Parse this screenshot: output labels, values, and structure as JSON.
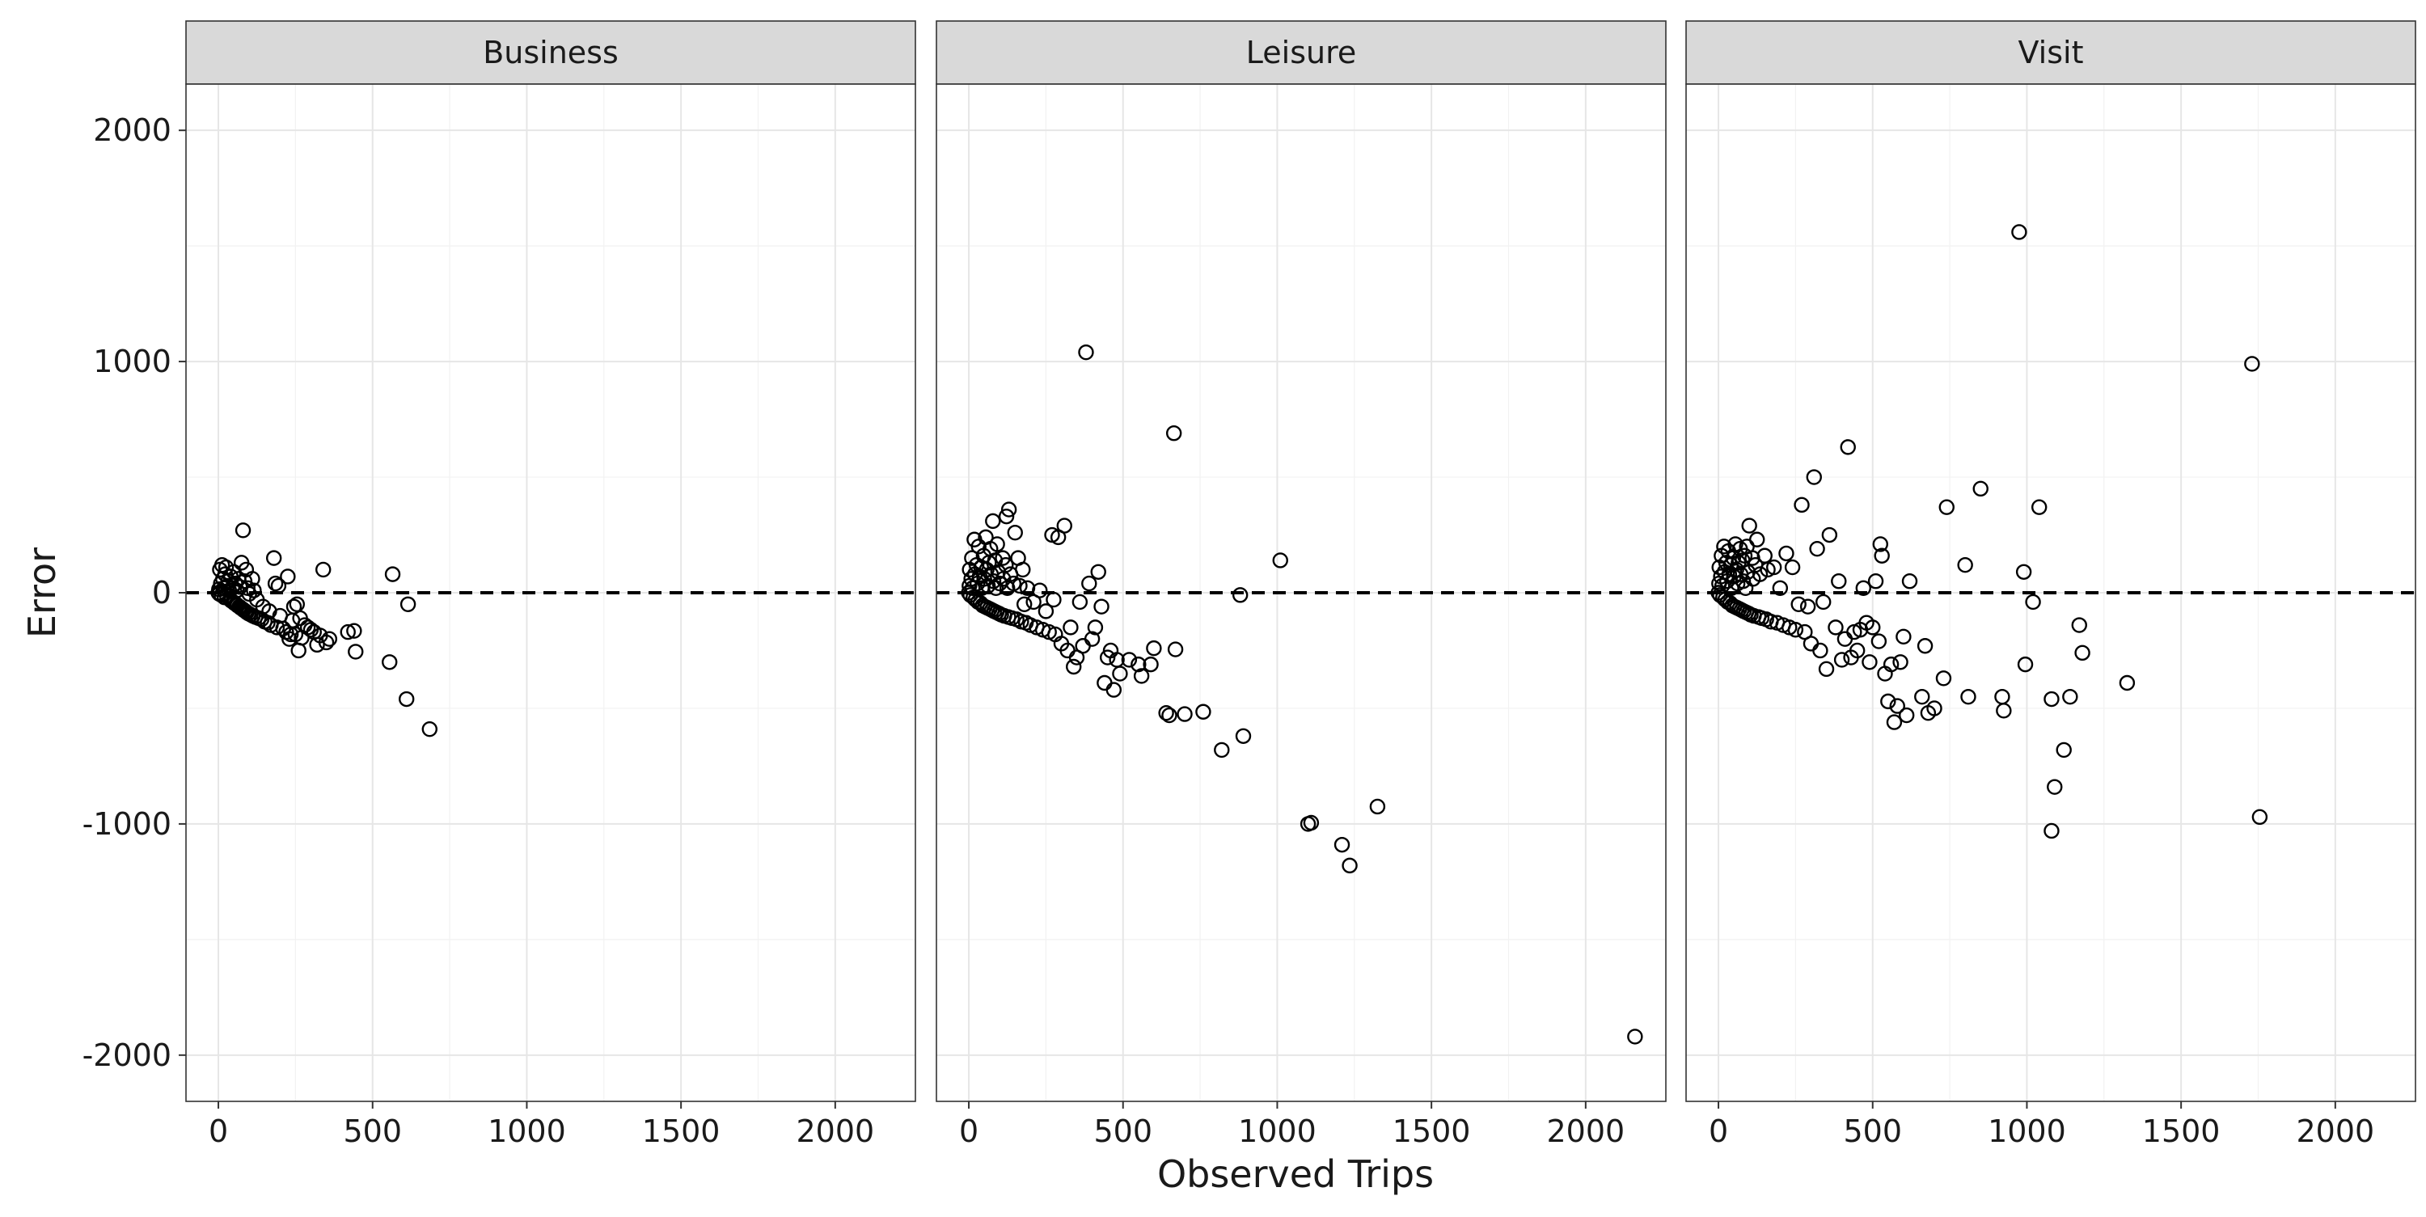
{
  "chart_data": {
    "type": "scatter",
    "xlabel": "Observed Trips",
    "ylabel": "Error",
    "xlim": [
      -105,
      2260
    ],
    "ylim": [
      -2200,
      2200
    ],
    "x_ticks": [
      0,
      500,
      1000,
      1500,
      2000
    ],
    "y_ticks": [
      -2000,
      -1000,
      0,
      1000,
      2000
    ],
    "x_tick_labels": [
      "0",
      "500",
      "1000",
      "1500",
      "2000"
    ],
    "y_tick_labels": [
      "-2000",
      "-1000",
      "0",
      "1000",
      "2000"
    ],
    "reference_line": {
      "y": 0,
      "style": "dashed"
    },
    "grid": true,
    "facets": [
      {
        "label": "Business",
        "points": [
          [
            0,
            0
          ],
          [
            2,
            15
          ],
          [
            3,
            -5
          ],
          [
            5,
            100
          ],
          [
            8,
            40
          ],
          [
            10,
            -10
          ],
          [
            12,
            120
          ],
          [
            15,
            60
          ],
          [
            18,
            20
          ],
          [
            20,
            -20
          ],
          [
            22,
            80
          ],
          [
            25,
            110
          ],
          [
            28,
            -15
          ],
          [
            30,
            30
          ],
          [
            32,
            50
          ],
          [
            35,
            10
          ],
          [
            38,
            -30
          ],
          [
            40,
            70
          ],
          [
            42,
            -35
          ],
          [
            45,
            20
          ],
          [
            48,
            -40
          ],
          [
            50,
            90
          ],
          [
            52,
            -45
          ],
          [
            55,
            40
          ],
          [
            58,
            -50
          ],
          [
            60,
            10
          ],
          [
            62,
            -55
          ],
          [
            65,
            60
          ],
          [
            68,
            -60
          ],
          [
            70,
            25
          ],
          [
            72,
            -65
          ],
          [
            75,
            130
          ],
          [
            78,
            -70
          ],
          [
            80,
            270
          ],
          [
            82,
            -75
          ],
          [
            85,
            50
          ],
          [
            88,
            -80
          ],
          [
            90,
            100
          ],
          [
            92,
            -85
          ],
          [
            95,
            20
          ],
          [
            98,
            -90
          ],
          [
            100,
            -5
          ],
          [
            105,
            -95
          ],
          [
            110,
            60
          ],
          [
            112,
            -100
          ],
          [
            115,
            10
          ],
          [
            120,
            -105
          ],
          [
            125,
            -30
          ],
          [
            130,
            -110
          ],
          [
            140,
            -115
          ],
          [
            145,
            -60
          ],
          [
            150,
            -125
          ],
          [
            160,
            -130
          ],
          [
            165,
            -80
          ],
          [
            170,
            -140
          ],
          [
            180,
            150
          ],
          [
            185,
            40
          ],
          [
            190,
            -150
          ],
          [
            195,
            30
          ],
          [
            200,
            -100
          ],
          [
            210,
            -155
          ],
          [
            220,
            -170
          ],
          [
            225,
            70
          ],
          [
            230,
            -200
          ],
          [
            235,
            -180
          ],
          [
            240,
            -120
          ],
          [
            245,
            -60
          ],
          [
            250,
            -180
          ],
          [
            255,
            -50
          ],
          [
            260,
            -250
          ],
          [
            265,
            -110
          ],
          [
            270,
            -195
          ],
          [
            280,
            -140
          ],
          [
            290,
            -150
          ],
          [
            300,
            -160
          ],
          [
            310,
            -170
          ],
          [
            320,
            -225
          ],
          [
            330,
            -185
          ],
          [
            340,
            100
          ],
          [
            350,
            -215
          ],
          [
            360,
            -200
          ],
          [
            420,
            -170
          ],
          [
            440,
            -165
          ],
          [
            445,
            -255
          ],
          [
            555,
            -300
          ],
          [
            565,
            80
          ],
          [
            610,
            -460
          ],
          [
            615,
            -50
          ],
          [
            685,
            -590
          ]
        ]
      },
      {
        "label": "Leisure",
        "points": [
          [
            0,
            0
          ],
          [
            2,
            30
          ],
          [
            3,
            100
          ],
          [
            5,
            -10
          ],
          [
            8,
            60
          ],
          [
            10,
            150
          ],
          [
            12,
            20
          ],
          [
            15,
            -20
          ],
          [
            18,
            230
          ],
          [
            20,
            80
          ],
          [
            22,
            -30
          ],
          [
            25,
            120
          ],
          [
            28,
            40
          ],
          [
            30,
            -40
          ],
          [
            32,
            200
          ],
          [
            35,
            70
          ],
          [
            38,
            -45
          ],
          [
            40,
            110
          ],
          [
            42,
            20
          ],
          [
            45,
            -55
          ],
          [
            48,
            160
          ],
          [
            50,
            60
          ],
          [
            52,
            -60
          ],
          [
            55,
            240
          ],
          [
            58,
            100
          ],
          [
            60,
            -65
          ],
          [
            62,
            30
          ],
          [
            65,
            130
          ],
          [
            68,
            -70
          ],
          [
            70,
            190
          ],
          [
            72,
            80
          ],
          [
            75,
            -75
          ],
          [
            78,
            310
          ],
          [
            80,
            50
          ],
          [
            82,
            -80
          ],
          [
            85,
            140
          ],
          [
            88,
            20
          ],
          [
            90,
            -85
          ],
          [
            92,
            210
          ],
          [
            95,
            90
          ],
          [
            98,
            -90
          ],
          [
            100,
            40
          ],
          [
            105,
            -95
          ],
          [
            110,
            150
          ],
          [
            112,
            60
          ],
          [
            115,
            -100
          ],
          [
            120,
            120
          ],
          [
            122,
            330
          ],
          [
            125,
            20
          ],
          [
            128,
            -105
          ],
          [
            130,
            360
          ],
          [
            135,
            80
          ],
          [
            140,
            -110
          ],
          [
            145,
            40
          ],
          [
            150,
            260
          ],
          [
            155,
            -115
          ],
          [
            160,
            150
          ],
          [
            165,
            30
          ],
          [
            170,
            -125
          ],
          [
            175,
            100
          ],
          [
            180,
            -50
          ],
          [
            185,
            -130
          ],
          [
            190,
            20
          ],
          [
            200,
            -140
          ],
          [
            210,
            -40
          ],
          [
            220,
            -150
          ],
          [
            230,
            10
          ],
          [
            240,
            -160
          ],
          [
            250,
            -80
          ],
          [
            260,
            -170
          ],
          [
            270,
            250
          ],
          [
            275,
            -30
          ],
          [
            280,
            -180
          ],
          [
            290,
            240
          ],
          [
            300,
            -220
          ],
          [
            310,
            290
          ],
          [
            320,
            -250
          ],
          [
            330,
            -150
          ],
          [
            340,
            -320
          ],
          [
            350,
            -280
          ],
          [
            360,
            -40
          ],
          [
            370,
            -230
          ],
          [
            380,
            1040
          ],
          [
            390,
            40
          ],
          [
            400,
            -200
          ],
          [
            410,
            -150
          ],
          [
            420,
            90
          ],
          [
            430,
            -60
          ],
          [
            440,
            -390
          ],
          [
            450,
            -280
          ],
          [
            460,
            -250
          ],
          [
            470,
            -420
          ],
          [
            480,
            -290
          ],
          [
            490,
            -350
          ],
          [
            520,
            -290
          ],
          [
            550,
            -310
          ],
          [
            560,
            -360
          ],
          [
            590,
            -310
          ],
          [
            600,
            -240
          ],
          [
            640,
            -520
          ],
          [
            650,
            -530
          ],
          [
            665,
            690
          ],
          [
            670,
            -245
          ],
          [
            700,
            -525
          ],
          [
            760,
            -515
          ],
          [
            820,
            -680
          ],
          [
            880,
            -10
          ],
          [
            890,
            -620
          ],
          [
            1010,
            140
          ],
          [
            1100,
            -1000
          ],
          [
            1110,
            -995
          ],
          [
            1210,
            -1090
          ],
          [
            1235,
            -1180
          ],
          [
            1325,
            -925
          ],
          [
            2160,
            -1920
          ]
        ]
      },
      {
        "label": "Visit",
        "points": [
          [
            0,
            0
          ],
          [
            2,
            40
          ],
          [
            3,
            110
          ],
          [
            5,
            -10
          ],
          [
            8,
            70
          ],
          [
            10,
            160
          ],
          [
            12,
            30
          ],
          [
            15,
            -20
          ],
          [
            18,
            200
          ],
          [
            20,
            90
          ],
          [
            22,
            -30
          ],
          [
            25,
            130
          ],
          [
            28,
            50
          ],
          [
            30,
            -40
          ],
          [
            32,
            180
          ],
          [
            35,
            80
          ],
          [
            38,
            -45
          ],
          [
            40,
            120
          ],
          [
            42,
            20
          ],
          [
            45,
            -55
          ],
          [
            48,
            150
          ],
          [
            50,
            70
          ],
          [
            52,
            -60
          ],
          [
            55,
            210
          ],
          [
            58,
            100
          ],
          [
            60,
            -65
          ],
          [
            62,
            40
          ],
          [
            65,
            130
          ],
          [
            68,
            -70
          ],
          [
            70,
            190
          ],
          [
            72,
            80
          ],
          [
            75,
            -75
          ],
          [
            78,
            140
          ],
          [
            80,
            50
          ],
          [
            82,
            -80
          ],
          [
            85,
            160
          ],
          [
            88,
            20
          ],
          [
            90,
            -85
          ],
          [
            92,
            200
          ],
          [
            95,
            90
          ],
          [
            98,
            -90
          ],
          [
            100,
            290
          ],
          [
            105,
            -95
          ],
          [
            110,
            150
          ],
          [
            112,
            60
          ],
          [
            115,
            -100
          ],
          [
            120,
            120
          ],
          [
            125,
            230
          ],
          [
            130,
            -105
          ],
          [
            135,
            80
          ],
          [
            140,
            -110
          ],
          [
            150,
            160
          ],
          [
            155,
            -115
          ],
          [
            160,
            100
          ],
          [
            170,
            -125
          ],
          [
            180,
            110
          ],
          [
            190,
            -130
          ],
          [
            200,
            20
          ],
          [
            210,
            -140
          ],
          [
            220,
            170
          ],
          [
            230,
            -150
          ],
          [
            240,
            110
          ],
          [
            250,
            -160
          ],
          [
            260,
            -50
          ],
          [
            270,
            380
          ],
          [
            280,
            -170
          ],
          [
            290,
            -60
          ],
          [
            300,
            -220
          ],
          [
            310,
            500
          ],
          [
            320,
            190
          ],
          [
            330,
            -250
          ],
          [
            340,
            -40
          ],
          [
            350,
            -330
          ],
          [
            360,
            250
          ],
          [
            380,
            -150
          ],
          [
            390,
            50
          ],
          [
            400,
            -290
          ],
          [
            410,
            -200
          ],
          [
            420,
            630
          ],
          [
            430,
            -280
          ],
          [
            440,
            -170
          ],
          [
            450,
            -250
          ],
          [
            460,
            -160
          ],
          [
            470,
            20
          ],
          [
            480,
            -130
          ],
          [
            490,
            -300
          ],
          [
            500,
            -150
          ],
          [
            510,
            50
          ],
          [
            520,
            -210
          ],
          [
            525,
            210
          ],
          [
            530,
            160
          ],
          [
            540,
            -350
          ],
          [
            550,
            -470
          ],
          [
            560,
            -310
          ],
          [
            570,
            -560
          ],
          [
            580,
            -490
          ],
          [
            590,
            -300
          ],
          [
            600,
            -190
          ],
          [
            610,
            -530
          ],
          [
            620,
            50
          ],
          [
            660,
            -450
          ],
          [
            670,
            -230
          ],
          [
            680,
            -520
          ],
          [
            700,
            -500
          ],
          [
            730,
            -370
          ],
          [
            740,
            370
          ],
          [
            800,
            120
          ],
          [
            810,
            -450
          ],
          [
            850,
            450
          ],
          [
            920,
            -450
          ],
          [
            925,
            -510
          ],
          [
            975,
            1560
          ],
          [
            990,
            90
          ],
          [
            995,
            -310
          ],
          [
            1020,
            -40
          ],
          [
            1040,
            370
          ],
          [
            1080,
            -460
          ],
          [
            1080,
            -1030
          ],
          [
            1090,
            -840
          ],
          [
            1120,
            -680
          ],
          [
            1140,
            -450
          ],
          [
            1170,
            -140
          ],
          [
            1180,
            -260
          ],
          [
            1325,
            -390
          ],
          [
            1730,
            990
          ],
          [
            1755,
            -970
          ]
        ]
      }
    ]
  }
}
